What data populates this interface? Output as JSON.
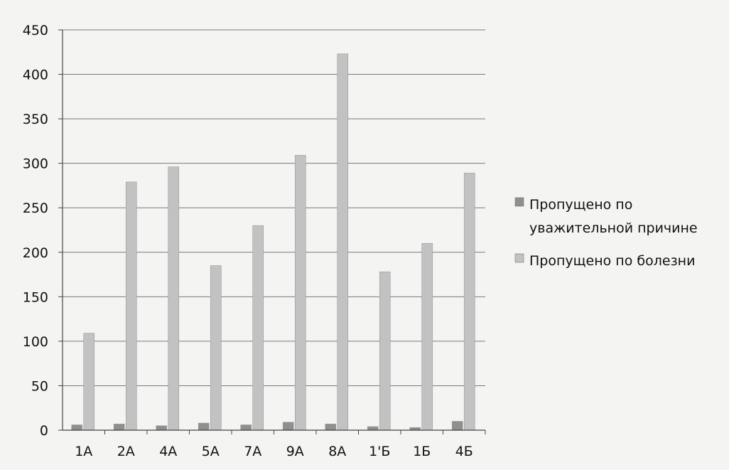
{
  "chart_data": {
    "type": "bar",
    "categories": [
      "1А",
      "2А",
      "4А",
      "5А",
      "7А",
      "9А",
      "8А",
      "1'Б",
      "1Б",
      "4Б"
    ],
    "series": [
      {
        "name": "Пропущено по уважительной причине",
        "values": [
          6,
          7,
          5,
          8,
          6,
          9,
          7,
          4,
          3,
          10
        ]
      },
      {
        "name": "Пропущено по болезни",
        "values": [
          109,
          279,
          296,
          185,
          230,
          309,
          423,
          178,
          210,
          289
        ]
      }
    ],
    "ylim": [
      0,
      450
    ],
    "yticks": [
      0,
      50,
      100,
      150,
      200,
      250,
      300,
      350,
      400,
      450
    ],
    "grid": true,
    "legend_position": "right",
    "legend_lines": [
      [
        "Пропущено по",
        "уважительной причине"
      ],
      [
        "Пропущено по болезни"
      ]
    ],
    "colors": {
      "series_1": "#8f8f8f",
      "series_2": "#c2c2c2",
      "grid": "#7a7a7a",
      "axis": "#444444"
    }
  }
}
